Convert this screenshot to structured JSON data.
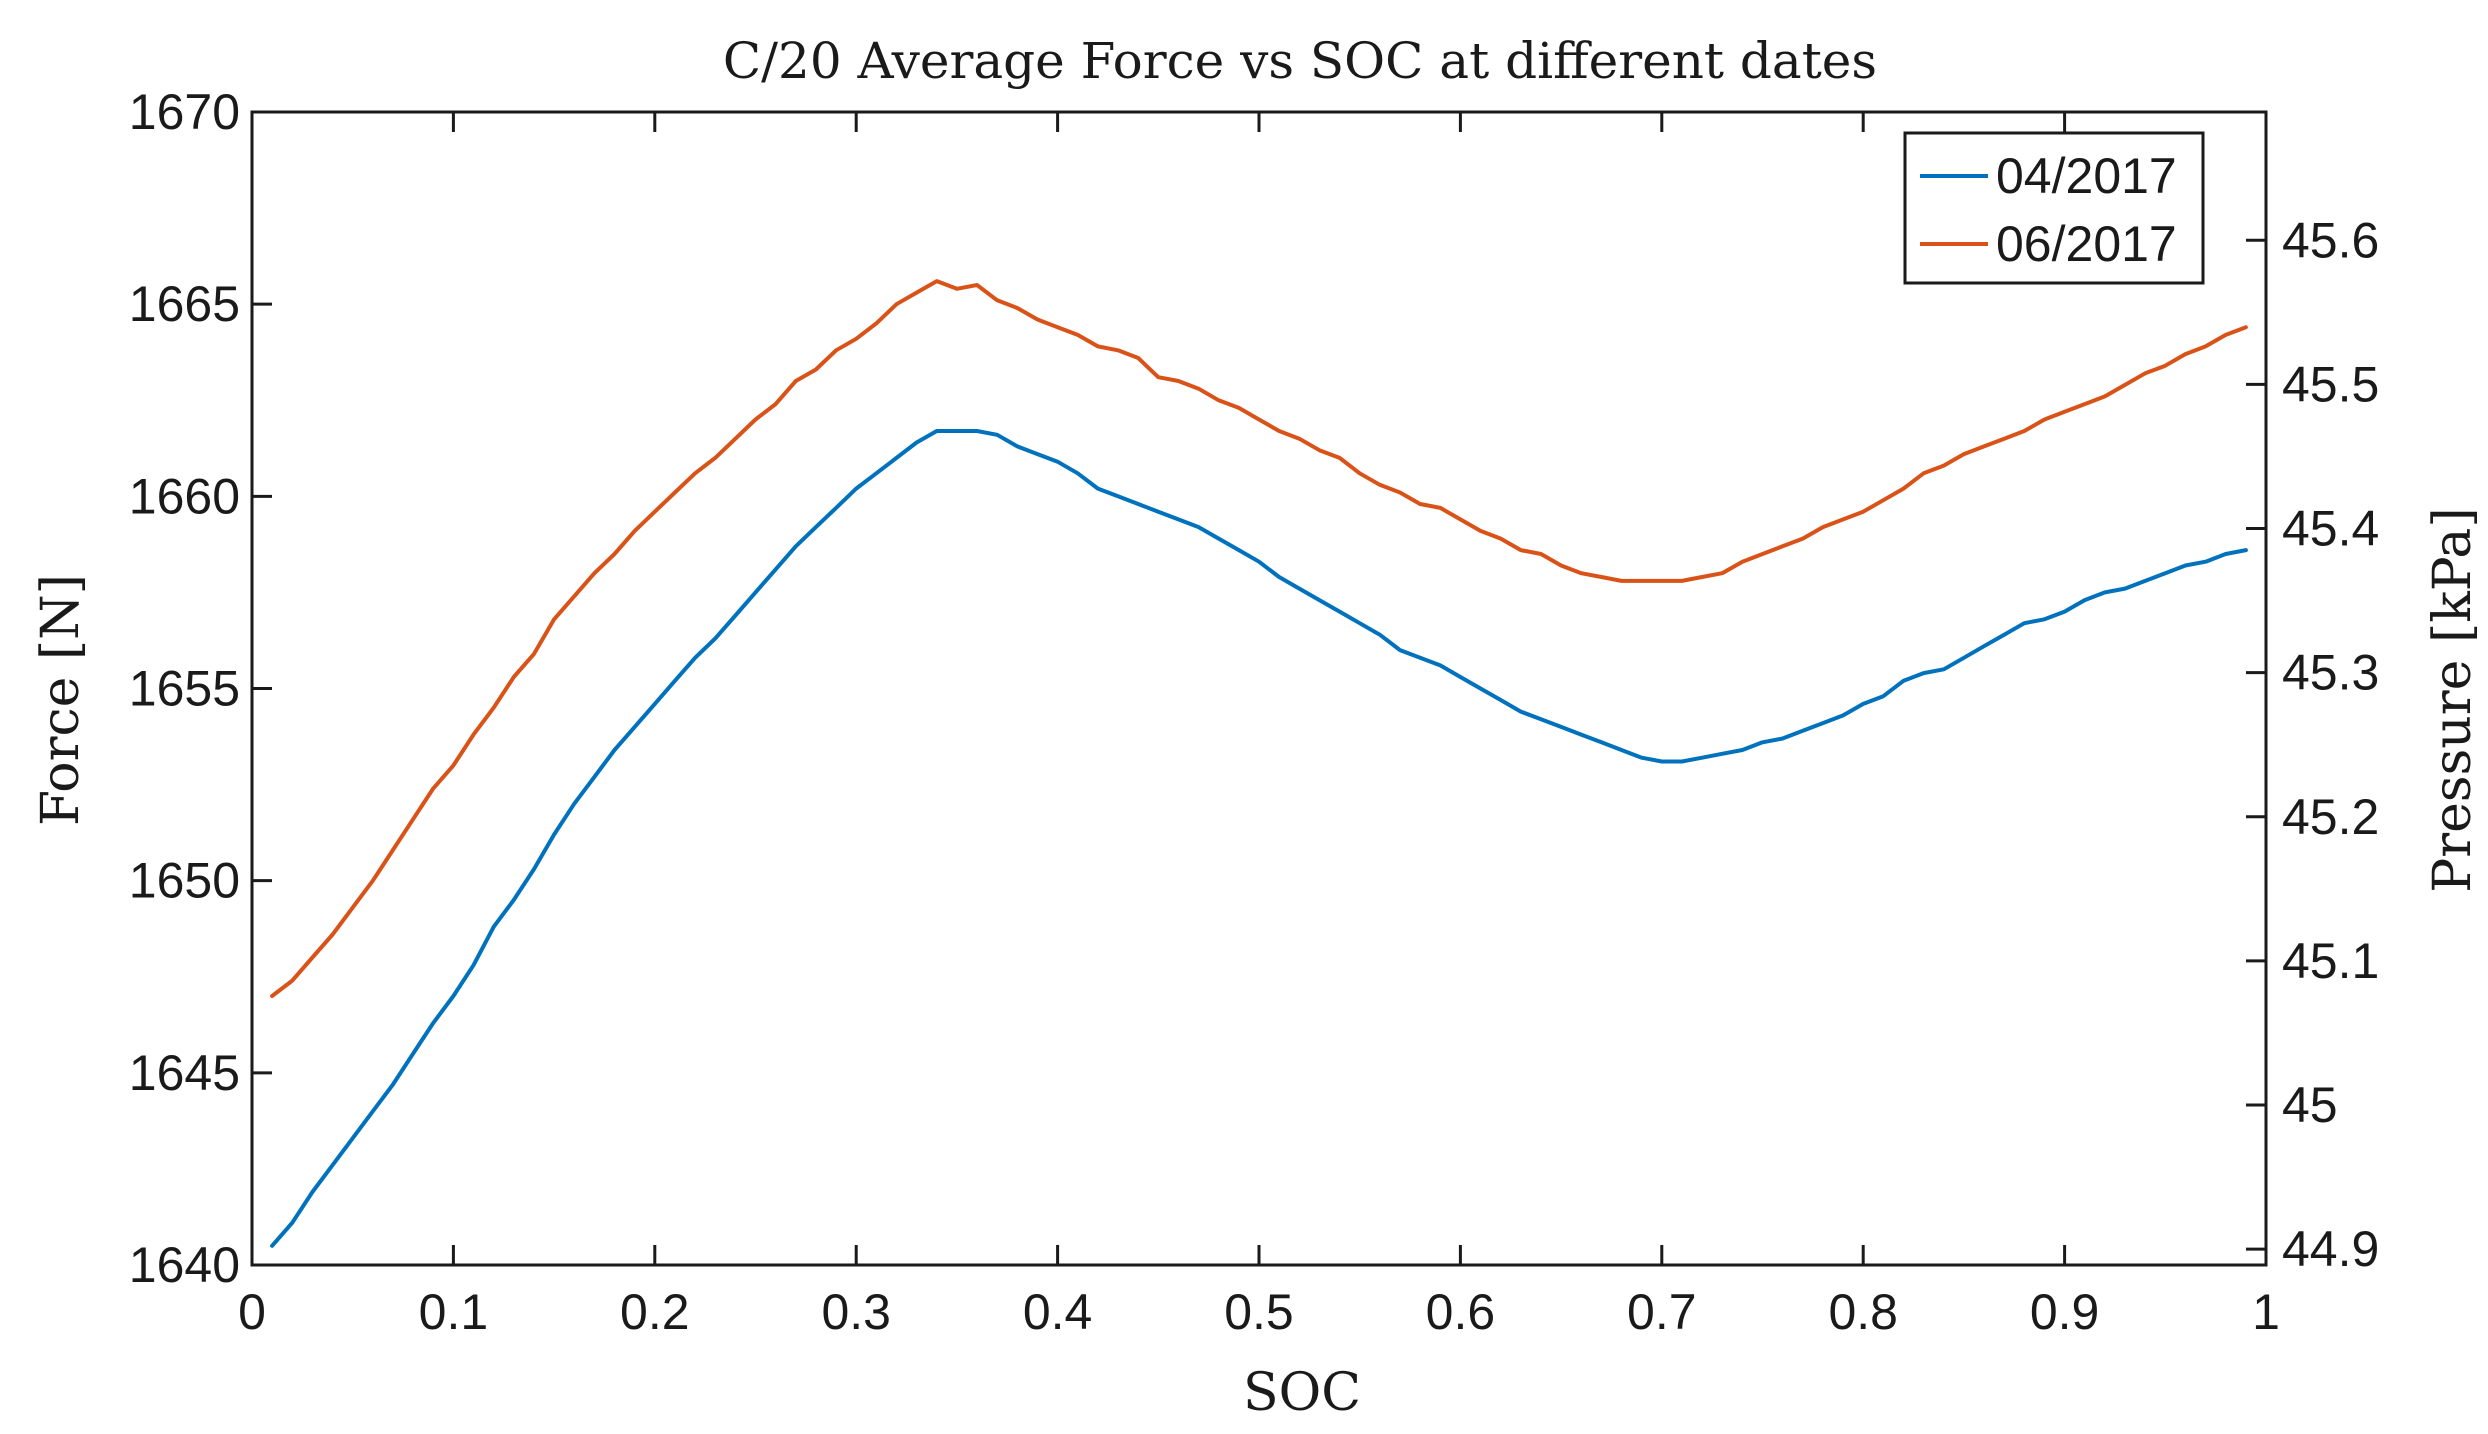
{
  "chart_data": {
    "type": "line",
    "title": "C/20 Average Force vs SOC at different dates",
    "xlabel": "SOC",
    "ylabel": "Force [N]",
    "y2label": "Pressure [kPa]",
    "xlim": [
      0,
      1
    ],
    "ylim": [
      1640,
      1670
    ],
    "y2lim": [
      44.889,
      45.689
    ],
    "xticks": [
      0,
      0.1,
      0.2,
      0.3,
      0.4,
      0.5,
      0.6,
      0.7,
      0.8,
      0.9,
      1
    ],
    "xtick_labels": [
      "0",
      "0.1",
      "0.2",
      "0.3",
      "0.4",
      "0.5",
      "0.6",
      "0.7",
      "0.8",
      "0.9",
      "1"
    ],
    "yticks": [
      1640,
      1645,
      1650,
      1655,
      1660,
      1665,
      1670
    ],
    "ytick_labels": [
      "1640",
      "1645",
      "1650",
      "1655",
      "1660",
      "1665",
      "1670"
    ],
    "y2ticks": [
      44.9,
      45,
      45.1,
      45.2,
      45.3,
      45.4,
      45.5,
      45.6
    ],
    "y2tick_labels": [
      "44.9",
      "45",
      "45.1",
      "45.2",
      "45.3",
      "45.4",
      "45.5",
      "45.6"
    ],
    "grid": false,
    "legend_position": "top-right",
    "series": [
      {
        "name": "04/2017",
        "color": "#0072BD",
        "x": [
          0.01,
          0.02,
          0.03,
          0.04,
          0.05,
          0.06,
          0.07,
          0.08,
          0.09,
          0.1,
          0.11,
          0.12,
          0.13,
          0.14,
          0.15,
          0.16,
          0.17,
          0.18,
          0.19,
          0.2,
          0.21,
          0.22,
          0.23,
          0.24,
          0.25,
          0.26,
          0.27,
          0.28,
          0.29,
          0.3,
          0.31,
          0.32,
          0.33,
          0.34,
          0.35,
          0.36,
          0.37,
          0.38,
          0.39,
          0.4,
          0.41,
          0.42,
          0.43,
          0.44,
          0.45,
          0.46,
          0.47,
          0.48,
          0.49,
          0.5,
          0.51,
          0.52,
          0.53,
          0.54,
          0.55,
          0.56,
          0.57,
          0.58,
          0.59,
          0.6,
          0.61,
          0.62,
          0.63,
          0.64,
          0.65,
          0.66,
          0.67,
          0.68,
          0.69,
          0.7,
          0.71,
          0.72,
          0.73,
          0.74,
          0.75,
          0.76,
          0.77,
          0.78,
          0.79,
          0.8,
          0.81,
          0.82,
          0.83,
          0.84,
          0.85,
          0.86,
          0.87,
          0.88,
          0.89,
          0.9,
          0.91,
          0.92,
          0.93,
          0.94,
          0.95,
          0.96,
          0.97,
          0.98,
          0.99
        ],
        "values": [
          1640.5,
          1641.1,
          1641.9,
          1642.6,
          1643.3,
          1644.0,
          1644.7,
          1645.5,
          1646.3,
          1647.0,
          1647.8,
          1648.8,
          1649.5,
          1650.3,
          1651.2,
          1652.0,
          1652.7,
          1653.4,
          1654.0,
          1654.6,
          1655.2,
          1655.8,
          1656.3,
          1656.9,
          1657.5,
          1658.1,
          1658.7,
          1659.2,
          1659.7,
          1660.2,
          1660.6,
          1661.0,
          1661.4,
          1661.7,
          1661.7,
          1661.7,
          1661.6,
          1661.3,
          1661.1,
          1660.9,
          1660.6,
          1660.2,
          1660.0,
          1659.8,
          1659.6,
          1659.4,
          1659.2,
          1658.9,
          1658.6,
          1658.3,
          1657.9,
          1657.6,
          1657.3,
          1657.0,
          1656.7,
          1656.4,
          1656.0,
          1655.8,
          1655.6,
          1655.3,
          1655.0,
          1654.7,
          1654.4,
          1654.2,
          1654.0,
          1653.8,
          1653.6,
          1653.4,
          1653.2,
          1653.1,
          1653.1,
          1653.2,
          1653.3,
          1653.4,
          1653.6,
          1653.7,
          1653.9,
          1654.1,
          1654.3,
          1654.6,
          1654.8,
          1655.2,
          1655.4,
          1655.5,
          1655.8,
          1656.1,
          1656.4,
          1656.7,
          1656.8,
          1657.0,
          1657.3,
          1657.5,
          1657.6,
          1657.8,
          1658.0,
          1658.2,
          1658.3,
          1658.5,
          1658.6
        ]
      },
      {
        "name": "06/2017",
        "color": "#D95319",
        "x": [
          0.01,
          0.02,
          0.03,
          0.04,
          0.05,
          0.06,
          0.07,
          0.08,
          0.09,
          0.1,
          0.11,
          0.12,
          0.13,
          0.14,
          0.15,
          0.16,
          0.17,
          0.18,
          0.19,
          0.2,
          0.21,
          0.22,
          0.23,
          0.24,
          0.25,
          0.26,
          0.27,
          0.28,
          0.29,
          0.3,
          0.31,
          0.32,
          0.33,
          0.34,
          0.35,
          0.36,
          0.37,
          0.38,
          0.39,
          0.4,
          0.41,
          0.42,
          0.43,
          0.44,
          0.45,
          0.46,
          0.47,
          0.48,
          0.49,
          0.5,
          0.51,
          0.52,
          0.53,
          0.54,
          0.55,
          0.56,
          0.57,
          0.58,
          0.59,
          0.6,
          0.61,
          0.62,
          0.63,
          0.64,
          0.65,
          0.66,
          0.67,
          0.68,
          0.69,
          0.7,
          0.71,
          0.72,
          0.73,
          0.74,
          0.75,
          0.76,
          0.77,
          0.78,
          0.79,
          0.8,
          0.81,
          0.82,
          0.83,
          0.84,
          0.85,
          0.86,
          0.87,
          0.88,
          0.89,
          0.9,
          0.91,
          0.92,
          0.93,
          0.94,
          0.95,
          0.96,
          0.97,
          0.98,
          0.99
        ],
        "values": [
          1647.0,
          1647.4,
          1648.0,
          1648.6,
          1649.3,
          1650.0,
          1650.8,
          1651.6,
          1652.4,
          1653.0,
          1653.8,
          1654.5,
          1655.3,
          1655.9,
          1656.8,
          1657.4,
          1658.0,
          1658.5,
          1659.1,
          1659.6,
          1660.1,
          1660.6,
          1661.0,
          1661.5,
          1662.0,
          1662.4,
          1663.0,
          1663.3,
          1663.8,
          1664.1,
          1664.5,
          1665.0,
          1665.3,
          1665.6,
          1665.4,
          1665.5,
          1665.1,
          1664.9,
          1664.6,
          1664.4,
          1664.2,
          1663.9,
          1663.8,
          1663.6,
          1663.1,
          1663.0,
          1662.8,
          1662.5,
          1662.3,
          1662.0,
          1661.7,
          1661.5,
          1661.2,
          1661.0,
          1660.6,
          1660.3,
          1660.1,
          1659.8,
          1659.7,
          1659.4,
          1659.1,
          1658.9,
          1658.6,
          1658.5,
          1658.2,
          1658.0,
          1657.9,
          1657.8,
          1657.8,
          1657.8,
          1657.8,
          1657.9,
          1658.0,
          1658.3,
          1658.5,
          1658.7,
          1658.9,
          1659.2,
          1659.4,
          1659.6,
          1659.9,
          1660.2,
          1660.6,
          1660.8,
          1661.1,
          1661.3,
          1661.5,
          1661.7,
          1662.0,
          1662.2,
          1662.4,
          1662.6,
          1662.9,
          1663.2,
          1663.4,
          1663.7,
          1663.9,
          1664.2,
          1664.4
        ]
      }
    ]
  }
}
